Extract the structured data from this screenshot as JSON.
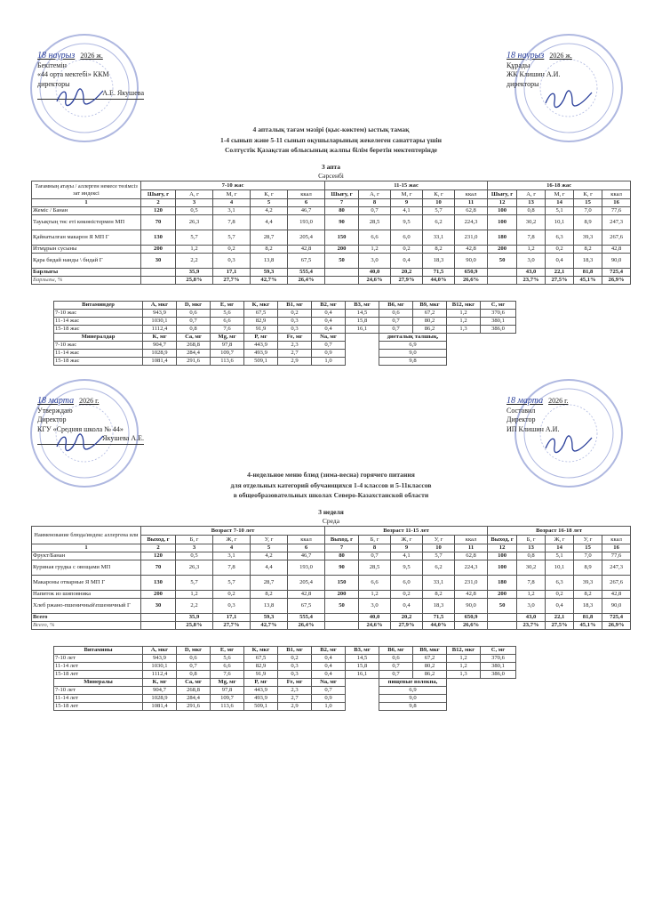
{
  "doc_kz": {
    "approve": {
      "date_hand": "18 наурыз",
      "year": "2026 ж.",
      "lines": [
        "Бекітемін",
        "«44 орта мектебі» ККМ",
        "директоры"
      ],
      "signer": "А.Е. Якушева"
    },
    "compose": {
      "date_hand": "18 наурыз",
      "year": "2026 ж.",
      "lines": [
        "Құрады",
        "ЖК Клишин А.И.",
        "директоры"
      ]
    },
    "title": [
      "4 апталық тағам мәзірі (қыс-көктем) ыстық тамақ",
      "1-4 сынып және 5-11 сынып оқушыларының жекелеген санаттары үшін",
      "Солтүстік Қазақстан облысының жалпы білім беретін мектептерінде"
    ],
    "week": "3 апта",
    "day": "Сәрсенбі",
    "menu": {
      "name_header": "Тағамның атауы / аллерген немесе төзімсіз зат индексі",
      "groups": [
        "7-10 жас",
        "11-15 жас",
        "16-18 жас"
      ],
      "cols": [
        "Шығу, г",
        "А, г",
        "М, г",
        "К, г",
        "ккал"
      ],
      "nums": [
        "1",
        "2",
        "3",
        "4",
        "5",
        "6",
        "7",
        "8",
        "9",
        "10",
        "11",
        "12",
        "13",
        "14",
        "15",
        "16"
      ],
      "rows": [
        [
          "Жеміс / Банан",
          "120",
          "0,5",
          "3,1",
          "4,2",
          "46,7",
          "80",
          "0,7",
          "4,1",
          "5,7",
          "62,8",
          "100",
          "0,8",
          "5,1",
          "7,0",
          "77,6"
        ],
        [
          "Тауықтың төс еті көкөністермен МП",
          "70",
          "26,3",
          "7,8",
          "4,4",
          "193,0",
          "90",
          "28,5",
          "9,5",
          "6,2",
          "224,3",
          "100",
          "30,2",
          "10,1",
          "8,9",
          "247,3"
        ],
        [
          "Қайнатылған макарон Я МП Г",
          "130",
          "5,7",
          "5,7",
          "28,7",
          "205,4",
          "150",
          "6,6",
          "6,0",
          "33,1",
          "231,0",
          "180",
          "7,8",
          "6,3",
          "39,3",
          "267,6"
        ],
        [
          "Итмұрын сусыны",
          "200",
          "1,2",
          "0,2",
          "8,2",
          "42,8",
          "200",
          "1,2",
          "0,2",
          "8,2",
          "42,8",
          "200",
          "1,2",
          "0,2",
          "8,2",
          "42,8"
        ],
        [
          "Қара бидай нанды \\ бидай Г",
          "30",
          "2,2",
          "0,3",
          "13,8",
          "67,5",
          "50",
          "3,0",
          "0,4",
          "18,3",
          "90,0",
          "50",
          "3,0",
          "0,4",
          "18,3",
          "90,0"
        ]
      ],
      "total": [
        "Барлығы",
        "",
        "35,9",
        "17,1",
        "59,3",
        "555,4",
        "",
        "40,0",
        "20,2",
        "71,5",
        "650,9",
        "",
        "43,0",
        "22,1",
        "81,8",
        "725,4"
      ],
      "percent": [
        "Барлығы, %",
        "",
        "25,8%",
        "27,7%",
        "42,7%",
        "26,4%",
        "",
        "24,6%",
        "27,9%",
        "44,0%",
        "26,6%",
        "",
        "23,7%",
        "27,5%",
        "45,1%",
        "26,9%"
      ]
    },
    "micro": {
      "vit_header": [
        "Витаминдер",
        "A, мкг",
        "D, мкг",
        "E, мг",
        "K, мкг",
        "B1, мг",
        "B2, мг",
        "B3, мг",
        "B6, мг",
        "B9, мкг",
        "B12, мкг",
        "C, мг"
      ],
      "vit_rows": [
        [
          "7-10 жас",
          "943,9",
          "0,6",
          "5,6",
          "67,5",
          "0,2",
          "0,4",
          "14,5",
          "0,6",
          "67,2",
          "1,2",
          "370,6"
        ],
        [
          "11-14 жас",
          "1030,1",
          "0,7",
          "6,6",
          "82,9",
          "0,3",
          "0,4",
          "15,8",
          "0,7",
          "80,2",
          "1,2",
          "380,1"
        ],
        [
          "15-18 жас",
          "1112,4",
          "0,8",
          "7,6",
          "91,9",
          "0,3",
          "0,4",
          "16,1",
          "0,7",
          "86,2",
          "1,3",
          "386,0"
        ]
      ],
      "min_header": [
        "Минералдар",
        "K, мг",
        "Ca, мг",
        "Mg, мг",
        "P, мг",
        "Fe, мг",
        "Na, мг"
      ],
      "min_rows": [
        [
          "7-10 жас",
          "904,7",
          "268,8",
          "97,8",
          "443,9",
          "2,3",
          "0,7"
        ],
        [
          "11-14 жас",
          "1028,9",
          "284,4",
          "109,7",
          "493,9",
          "2,7",
          "0,9"
        ],
        [
          "15-18 жас",
          "1081,4",
          "291,6",
          "113,6",
          "509,1",
          "2,9",
          "1,0"
        ]
      ],
      "fiber_header": "диеталық талшық,",
      "fiber": [
        "6,9",
        "9,0",
        "9,8"
      ]
    }
  },
  "doc_ru": {
    "approve": {
      "date_hand": "18 марта",
      "year": "2026 г.",
      "lines": [
        "Утверждаю",
        "Директор",
        "КГУ «Средняя школа № 44»"
      ],
      "signer": "Якушева А.Е."
    },
    "compose": {
      "date_hand": "18 марта",
      "year": "2026 г.",
      "lines": [
        "Составил",
        "Директор",
        "ИП Клишин А.И."
      ]
    },
    "title": [
      "4-недельное меню блюд (зима-весна) горячего питания",
      "для отдельных категорий обучающихся 1-4 классов и 5-11классов",
      "в общеобразовательных школах Северо-Казахстанской области"
    ],
    "week": "3 неделя",
    "day": "Среда",
    "menu": {
      "name_header": "Наименование блюда/индекс аллергена или",
      "groups": [
        "Возраст 7-10 лет",
        "Возраст 11-15 лет",
        "Возраст 16-18 лет"
      ],
      "cols": [
        "Выход, г",
        "Б, г",
        "Ж, г",
        "У, г",
        "ккал"
      ],
      "nums": [
        "1",
        "2",
        "3",
        "4",
        "5",
        "6",
        "7",
        "8",
        "9",
        "10",
        "11",
        "12",
        "13",
        "14",
        "15",
        "16"
      ],
      "rows": [
        [
          "Фрукт/Банан",
          "120",
          "0,5",
          "3,1",
          "4,2",
          "46,7",
          "80",
          "0,7",
          "4,1",
          "5,7",
          "62,8",
          "100",
          "0,8",
          "5,1",
          "7,0",
          "77,6"
        ],
        [
          "Куриная грудка с овощами МП",
          "70",
          "26,3",
          "7,8",
          "4,4",
          "193,0",
          "90",
          "28,5",
          "9,5",
          "6,2",
          "224,3",
          "100",
          "30,2",
          "10,1",
          "8,9",
          "247,3"
        ],
        [
          "Макароны отварные Я МП Г",
          "130",
          "5,7",
          "5,7",
          "28,7",
          "205,4",
          "150",
          "6,6",
          "6,0",
          "33,1",
          "231,0",
          "180",
          "7,8",
          "6,3",
          "39,3",
          "267,6"
        ],
        [
          "Напиток из шиповника",
          "200",
          "1,2",
          "0,2",
          "8,2",
          "42,8",
          "200",
          "1,2",
          "0,2",
          "8,2",
          "42,8",
          "200",
          "1,2",
          "0,2",
          "8,2",
          "42,8"
        ],
        [
          "Хлеб ржано-пшеничный\\пшеничный  Г",
          "30",
          "2,2",
          "0,3",
          "13,8",
          "67,5",
          "50",
          "3,0",
          "0,4",
          "18,3",
          "90,0",
          "50",
          "3,0",
          "0,4",
          "18,3",
          "90,0"
        ]
      ],
      "total": [
        "Всего",
        "",
        "35,9",
        "17,1",
        "59,3",
        "555,4",
        "",
        "40,0",
        "20,2",
        "71,5",
        "650,9",
        "",
        "43,0",
        "22,1",
        "81,8",
        "725,4"
      ],
      "percent": [
        "Всего, %",
        "",
        "25,8%",
        "27,7%",
        "42,7%",
        "26,4%",
        "",
        "24,6%",
        "27,9%",
        "44,0%",
        "26,6%",
        "",
        "23,7%",
        "27,5%",
        "45,1%",
        "26,9%"
      ]
    },
    "micro": {
      "vit_header": [
        "Витамины",
        "A, мкг",
        "D, мкг",
        "E, мг",
        "K, мкг",
        "B1, мг",
        "B2, мг",
        "B3, мг",
        "B6, мг",
        "B9, мкг",
        "B12, мкг",
        "C, мг"
      ],
      "vit_rows": [
        [
          "7-10 лет",
          "943,9",
          "0,6",
          "5,6",
          "67,5",
          "0,2",
          "0,4",
          "14,5",
          "0,6",
          "67,2",
          "1,2",
          "370,6"
        ],
        [
          "11-14 лет",
          "1030,1",
          "0,7",
          "6,6",
          "82,9",
          "0,3",
          "0,4",
          "15,8",
          "0,7",
          "80,2",
          "1,2",
          "380,1"
        ],
        [
          "15-18 лет",
          "1112,4",
          "0,8",
          "7,6",
          "91,9",
          "0,3",
          "0,4",
          "16,1",
          "0,7",
          "86,2",
          "1,3",
          "386,0"
        ]
      ],
      "min_header": [
        "Минералы",
        "K, мг",
        "Ca, мг",
        "Mg, мг",
        "P, мг",
        "Fe, мг",
        "Na, мг"
      ],
      "min_rows": [
        [
          "7-10 лет",
          "904,7",
          "268,8",
          "97,8",
          "443,9",
          "2,3",
          "0,7"
        ],
        [
          "11-14 лет",
          "1028,9",
          "284,4",
          "109,7",
          "493,9",
          "2,7",
          "0,9"
        ],
        [
          "15-18 лет",
          "1081,4",
          "291,6",
          "113,6",
          "509,1",
          "2,9",
          "1,0"
        ]
      ],
      "fiber_header": "пищевые волокна,",
      "fiber": [
        "6,9",
        "9,0",
        "9,8"
      ]
    }
  },
  "colors": {
    "stamp": "#6f7fc8",
    "ink": "#2a3f9a"
  }
}
